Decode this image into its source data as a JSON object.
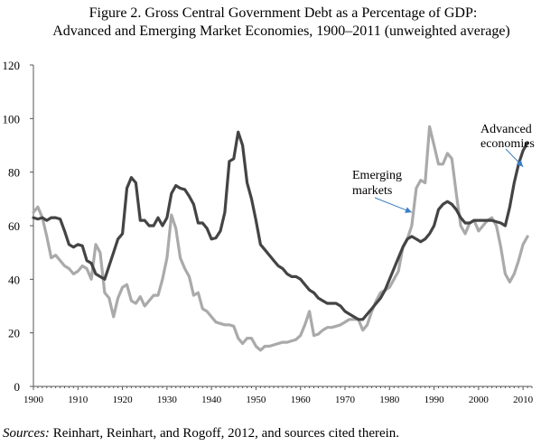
{
  "title_line_1": "Figure 2. Gross Central Government Debt as a Percentage of GDP:",
  "title_line_2": "Advanced and Emerging Market Economies, 1900–2011 (unweighted average)",
  "source_label": "Sources:",
  "source_text": " Reinhart, Reinhart, and Rogoff, 2012, and sources cited therein.",
  "chart_data": {
    "type": "line",
    "title": "Figure 2. Gross Central Government Debt as a Percentage of GDP: Advanced and Emerging Market Economies, 1900–2011 (unweighted average)",
    "xlabel": "",
    "ylabel": "",
    "xlim": [
      1900,
      2012
    ],
    "ylim": [
      0,
      120
    ],
    "x_ticks": [
      "1900",
      "1910",
      "1920",
      "1930",
      "1940",
      "1950",
      "1960",
      "1970",
      "1980",
      "1990",
      "2000",
      "2010"
    ],
    "y_ticks": [
      "0",
      "20",
      "40",
      "60",
      "80",
      "100",
      "120"
    ],
    "grid": false,
    "annotations": [
      {
        "lines": [
          "Emerging",
          "markets"
        ],
        "series": "Emerging markets",
        "arrow_to": [
          1985,
          65
        ]
      },
      {
        "lines": [
          "Advanced",
          "economies"
        ],
        "series": "Advanced economies",
        "arrow_to": [
          2010,
          82
        ]
      }
    ],
    "series": [
      {
        "name": "Advanced economies",
        "color": "#444444",
        "x": [
          1900,
          1901,
          1902,
          1903,
          1904,
          1905,
          1906,
          1907,
          1908,
          1909,
          1910,
          1911,
          1912,
          1913,
          1914,
          1915,
          1916,
          1917,
          1918,
          1919,
          1920,
          1921,
          1922,
          1923,
          1924,
          1925,
          1926,
          1927,
          1928,
          1929,
          1930,
          1931,
          1932,
          1933,
          1934,
          1935,
          1936,
          1937,
          1938,
          1939,
          1940,
          1941,
          1942,
          1943,
          1944,
          1945,
          1946,
          1947,
          1948,
          1949,
          1950,
          1951,
          1952,
          1953,
          1954,
          1955,
          1956,
          1957,
          1958,
          1959,
          1960,
          1961,
          1962,
          1963,
          1964,
          1965,
          1966,
          1967,
          1968,
          1969,
          1970,
          1971,
          1972,
          1973,
          1974,
          1975,
          1976,
          1977,
          1978,
          1979,
          1980,
          1981,
          1982,
          1983,
          1984,
          1985,
          1986,
          1987,
          1988,
          1989,
          1990,
          1991,
          1992,
          1993,
          1994,
          1995,
          1996,
          1997,
          1998,
          1999,
          2000,
          2001,
          2002,
          2003,
          2004,
          2005,
          2006,
          2007,
          2008,
          2009,
          2010,
          2011
        ],
        "values": [
          63,
          62.5,
          63,
          62,
          63,
          63,
          62.5,
          58,
          53,
          52,
          53,
          52.5,
          47,
          46,
          42,
          41,
          40,
          45,
          50,
          55,
          57,
          74,
          78,
          76,
          62,
          62,
          60,
          60,
          63,
          60,
          63,
          72,
          75,
          74,
          73.5,
          71,
          68,
          61,
          61,
          59,
          55,
          55.5,
          58,
          65,
          84,
          85,
          95,
          90,
          76,
          70,
          62,
          53,
          51,
          49,
          47,
          45,
          44,
          42,
          41,
          41,
          40,
          38,
          36,
          35,
          33,
          32,
          31,
          31,
          31,
          30,
          28,
          27,
          26,
          25,
          25,
          27,
          29,
          31,
          33,
          36,
          40,
          44,
          48,
          52,
          55,
          56,
          55,
          54,
          55,
          57,
          60,
          66,
          68,
          69,
          68,
          66,
          63,
          61,
          61,
          62,
          62,
          62,
          62,
          62,
          61.5,
          61,
          60,
          67,
          76,
          83,
          88,
          91
        ]
      },
      {
        "name": "Emerging markets",
        "color": "#aaaaaa",
        "x": [
          1900,
          1901,
          1902,
          1903,
          1904,
          1905,
          1906,
          1907,
          1908,
          1909,
          1910,
          1911,
          1912,
          1913,
          1914,
          1915,
          1916,
          1917,
          1918,
          1919,
          1920,
          1921,
          1922,
          1923,
          1924,
          1925,
          1926,
          1927,
          1928,
          1929,
          1930,
          1931,
          1932,
          1933,
          1934,
          1935,
          1936,
          1937,
          1938,
          1939,
          1940,
          1941,
          1942,
          1943,
          1944,
          1945,
          1946,
          1947,
          1948,
          1949,
          1950,
          1951,
          1952,
          1953,
          1954,
          1955,
          1956,
          1957,
          1958,
          1959,
          1960,
          1961,
          1962,
          1963,
          1964,
          1965,
          1966,
          1967,
          1968,
          1969,
          1970,
          1971,
          1972,
          1973,
          1974,
          1975,
          1976,
          1977,
          1978,
          1979,
          1980,
          1981,
          1982,
          1983,
          1984,
          1985,
          1986,
          1987,
          1988,
          1989,
          1990,
          1991,
          1992,
          1993,
          1994,
          1995,
          1996,
          1997,
          1998,
          1999,
          2000,
          2001,
          2002,
          2003,
          2004,
          2005,
          2006,
          2007,
          2008,
          2009,
          2010,
          2011
        ],
        "values": [
          65,
          67,
          63,
          56,
          48,
          49,
          47,
          45,
          44,
          42,
          43,
          45,
          44,
          40,
          53,
          50,
          35,
          33,
          26,
          33,
          37,
          38,
          32,
          31,
          33.5,
          30,
          32,
          34,
          34,
          40,
          48,
          64,
          59,
          48,
          44,
          41,
          34,
          35,
          29,
          28,
          26,
          24,
          23.5,
          23,
          23,
          22.5,
          18,
          16,
          18,
          18,
          15,
          13.5,
          15,
          15,
          15.5,
          16,
          16.5,
          16.5,
          17,
          17.5,
          19,
          23,
          28,
          19,
          19.5,
          21,
          22,
          22,
          22.5,
          23,
          24,
          25,
          25,
          25,
          21,
          23,
          28,
          32,
          35,
          36,
          37,
          40,
          43,
          52,
          55,
          60,
          74,
          77,
          76,
          97,
          90,
          83,
          83,
          87,
          85,
          72,
          60,
          57,
          61,
          62,
          58,
          60,
          62,
          63,
          60,
          52,
          42,
          39,
          42,
          47,
          53,
          56
        ]
      }
    ]
  }
}
